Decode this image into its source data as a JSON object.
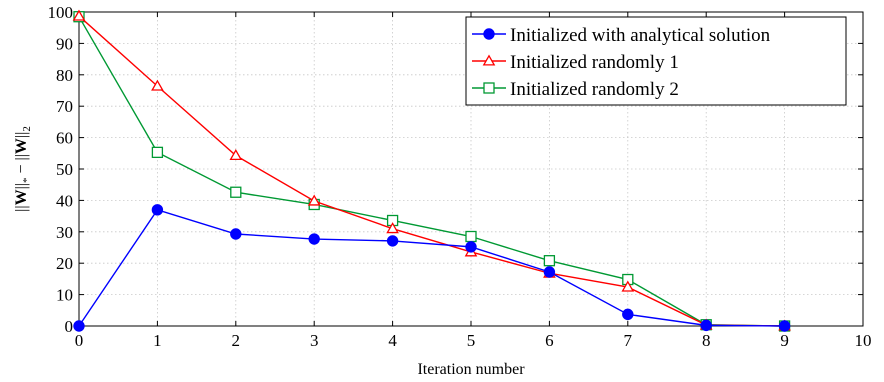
{
  "chart_data": {
    "type": "line",
    "xlabel": "Iteration number",
    "ylabel": "||W||* − ||W||2",
    "xlim": [
      0,
      10
    ],
    "ylim": [
      0,
      100
    ],
    "xticks": [
      0,
      1,
      2,
      3,
      4,
      5,
      6,
      7,
      8,
      9,
      10
    ],
    "yticks": [
      0,
      10,
      20,
      30,
      40,
      50,
      60,
      70,
      80,
      90,
      100
    ],
    "grid": true,
    "legend_position": "top-right",
    "series": [
      {
        "name": "Initialized with analytical solution",
        "color": "#0000ff",
        "marker": "filled-circle",
        "x": [
          0,
          1,
          2,
          3,
          4,
          5,
          6,
          7,
          8,
          9
        ],
        "values": [
          0,
          37,
          29.3,
          27.7,
          27.1,
          25.2,
          17.2,
          3.7,
          0.2,
          0
        ]
      },
      {
        "name": "Initialized randomly 1",
        "color": "#ff0000",
        "marker": "open-triangle",
        "x": [
          0,
          1,
          2,
          3,
          4,
          5,
          6,
          7,
          8,
          9
        ],
        "values": [
          98.7,
          76.4,
          54.3,
          39.8,
          31,
          23.6,
          16.8,
          12.4,
          0.3,
          0
        ]
      },
      {
        "name": "Initialized randomly 2",
        "color": "#009933",
        "marker": "open-square",
        "x": [
          0,
          1,
          2,
          3,
          4,
          5,
          6,
          7,
          8,
          9
        ],
        "values": [
          98.5,
          55.3,
          42.6,
          38.7,
          33.6,
          28.5,
          20.8,
          14.8,
          0.4,
          0
        ]
      }
    ]
  }
}
